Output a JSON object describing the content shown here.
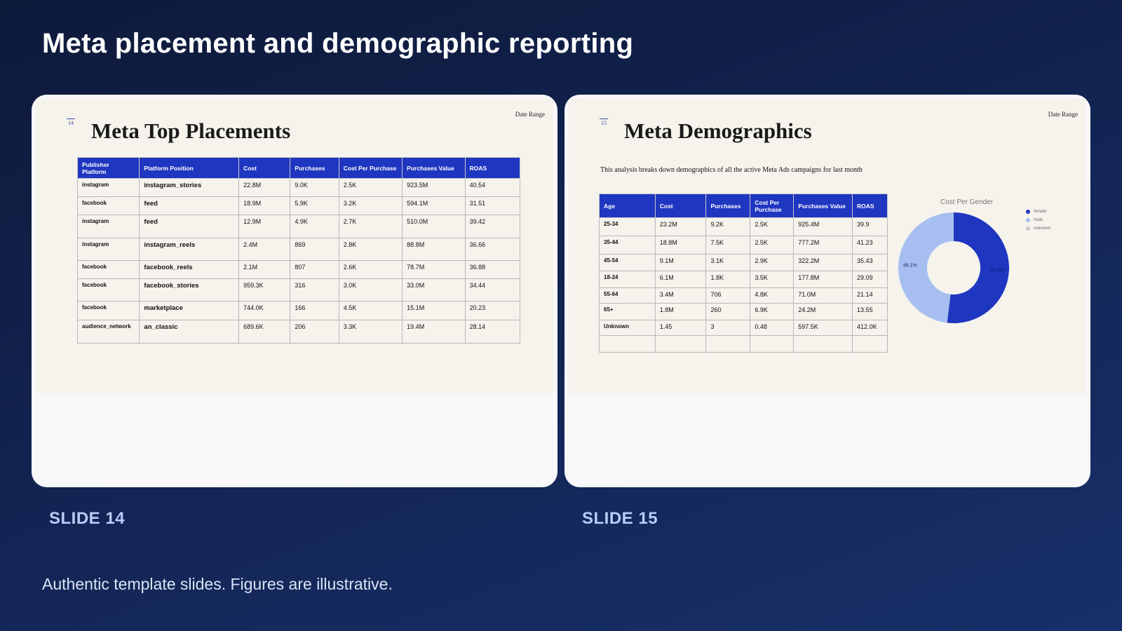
{
  "page": {
    "title": "Meta placement and demographic reporting",
    "footer": "Authentic template slides. Figures are illustrative."
  },
  "colors": {
    "accent": "#1f36c0",
    "male": "#a6bff0",
    "female": "#1f36c0",
    "unknown": "#c9c9c9"
  },
  "slide14": {
    "label": "SLIDE 14",
    "number": "14",
    "date_range": "Date Range",
    "title": "Meta Top Placements",
    "headers": [
      "Publisher Platform",
      "Platform Position",
      "Cost",
      "Purchases",
      "Cost Per Purchase",
      "Purchases Value",
      "ROAS"
    ],
    "rows": [
      [
        "instagram",
        "instagram_stories",
        "22.8M",
        "9.0K",
        "2.5K",
        "923.5M",
        "40.54"
      ],
      [
        "facebook",
        "feed",
        "18.9M",
        "5.9K",
        "3.2K",
        "594.1M",
        "31.51"
      ],
      [
        "instagram",
        "feed",
        "12.9M",
        "4.9K",
        "2.7K",
        "510.0M",
        "39.42"
      ],
      [
        "instagram",
        "instagram_reels",
        "2.4M",
        "869",
        "2.8K",
        "88.8M",
        "36.66"
      ],
      [
        "facebook",
        "facebook_reels",
        "2.1M",
        "807",
        "2.6K",
        "78.7M",
        "36.88"
      ],
      [
        "facebook",
        "facebook_stories",
        "959.3K",
        "316",
        "3.0K",
        "33.0M",
        "34.44"
      ],
      [
        "facebook",
        "marketplace",
        "744.0K",
        "166",
        "4.5K",
        "15.1M",
        "20.23"
      ],
      [
        "audience_network",
        "an_classic",
        "689.6K",
        "206",
        "3.3K",
        "19.4M",
        "28.14"
      ]
    ]
  },
  "slide15": {
    "label": "SLIDE 15",
    "number": "15",
    "date_range": "Date Range",
    "title": "Meta Demographics",
    "subtitle": "This analysis breaks down demographics of all the active Meta Ads campaigns for last month",
    "headers": [
      "Age",
      "Cost",
      "Purchases",
      "Cost Per Purchase",
      "Purchases Value",
      "ROAS"
    ],
    "rows": [
      [
        "25-34",
        "23.2M",
        "9.2K",
        "2.5K",
        "925.4M",
        "39.9"
      ],
      [
        "35-44",
        "18.8M",
        "7.5K",
        "2.5K",
        "777.2M",
        "41.23"
      ],
      [
        "45-54",
        "9.1M",
        "3.1K",
        "2.9K",
        "322.2M",
        "35.43"
      ],
      [
        "18-24",
        "6.1M",
        "1.8K",
        "3.5K",
        "177.8M",
        "29.09"
      ],
      [
        "55-64",
        "3.4M",
        "706",
        "4.8K",
        "71.0M",
        "21.14"
      ],
      [
        "65+",
        "1.8M",
        "260",
        "6.9K",
        "24.2M",
        "13.55"
      ],
      [
        "Unknown",
        "1.45",
        "3",
        "0.48",
        "597.5K",
        "412.0K"
      ],
      [
        "",
        "",
        "",
        "",
        "",
        ""
      ]
    ],
    "chart_data": {
      "type": "pie",
      "title": "Cost Per Gender",
      "legend": [
        "female",
        "male",
        "unknown"
      ],
      "legend_position": "right",
      "slices": [
        {
          "name": "female",
          "value": 51.9,
          "label": "51.9%"
        },
        {
          "name": "male",
          "value": 48.1,
          "label": "48.1%"
        },
        {
          "name": "unknown",
          "value": 0,
          "label": ""
        }
      ]
    }
  }
}
